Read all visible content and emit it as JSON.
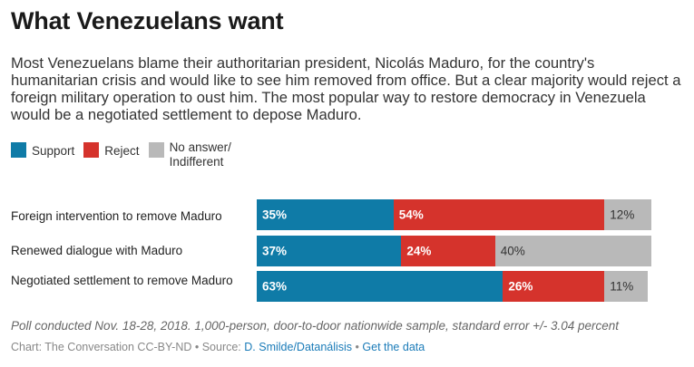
{
  "title": "What Venezuelans want",
  "subtitle": "Most Venezuelans blame their authoritarian president, Nicolás Maduro, for the country's humanitarian crisis and would like to see him removed from office. But a clear majority would reject a foreign military operation to oust him. The most popular way to restore democracy in Venezuela would be a negotiated settlement to depose Maduro.",
  "note": "Poll conducted Nov. 18-28, 2018. 1,000-person, door-to-door nationwide sample, standard error +/- 3.04 percent",
  "source": {
    "prefix": "Chart: The Conversation CC-BY-ND • Source: ",
    "source_link": "D. Smilde/Datanálisis",
    "separator": " • ",
    "data_link": "Get the data"
  },
  "colors": {
    "support": "#0f7ba7",
    "reject": "#d5332c",
    "no_answer": "#b9b9b9"
  },
  "chart_data": {
    "type": "bar",
    "orientation": "horizontal",
    "stacked": true,
    "categories": [
      "Foreign intervention to remove Maduro",
      "Renewed dialogue with Maduro",
      "Negotiated settlement to remove Maduro"
    ],
    "series": [
      {
        "name": "Support",
        "color": "#0f7ba7",
        "values": [
          35,
          37,
          63
        ],
        "labels": [
          "35%",
          "37%",
          "63%"
        ]
      },
      {
        "name": "Reject",
        "color": "#d5332c",
        "values": [
          54,
          24,
          26
        ],
        "labels": [
          "54%",
          "24%",
          "26%"
        ]
      },
      {
        "name": "No answer/ Indifferent",
        "color": "#b9b9b9",
        "values": [
          12,
          40,
          11
        ],
        "labels": [
          "12%",
          "40%",
          "11%"
        ]
      }
    ],
    "legend_labels": [
      "Support",
      "Reject",
      "No answer/",
      "Indifferent"
    ],
    "legend_position": "top-left",
    "xlim": [
      0,
      101
    ],
    "grid": false
  }
}
